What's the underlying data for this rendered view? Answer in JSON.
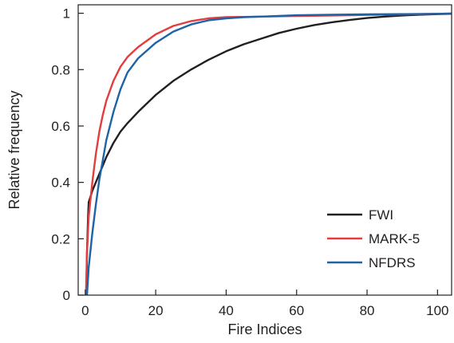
{
  "chart_data": {
    "type": "line",
    "title": "",
    "xlabel": "Fire Indices",
    "ylabel": "Relative frequency",
    "xlim": [
      -2,
      104
    ],
    "ylim": [
      0,
      1.03
    ],
    "xticks": [
      0,
      20,
      40,
      60,
      80,
      100
    ],
    "xtick_labels": [
      "0",
      "20",
      "40",
      "60",
      "80",
      "100"
    ],
    "yticks": [
      0,
      0.2,
      0.4,
      0.6,
      0.8,
      1
    ],
    "ytick_labels": [
      "0",
      "0.2",
      "0.4",
      "0.6",
      "0.8",
      "1"
    ],
    "grid": false,
    "legend_position": "bottom-right",
    "series": [
      {
        "name": "FWI",
        "color": "#231f20",
        "x": [
          0.3,
          0.5,
          0.8,
          1,
          1.5,
          2,
          3,
          4,
          5,
          6,
          8,
          10,
          12,
          15,
          20,
          25,
          30,
          35,
          40,
          45,
          50,
          55,
          60,
          65,
          70,
          75,
          80,
          85,
          90,
          95,
          100,
          104
        ],
        "y": [
          0.0,
          0.15,
          0.28,
          0.33,
          0.35,
          0.37,
          0.4,
          0.43,
          0.46,
          0.49,
          0.54,
          0.58,
          0.61,
          0.65,
          0.71,
          0.76,
          0.8,
          0.835,
          0.865,
          0.89,
          0.91,
          0.93,
          0.945,
          0.958,
          0.968,
          0.976,
          0.983,
          0.988,
          0.992,
          0.995,
          0.997,
          0.998
        ]
      },
      {
        "name": "MARK-5",
        "color": "#e23d3f",
        "x": [
          0.2,
          0.5,
          1,
          2,
          3,
          4,
          5,
          6,
          8,
          10,
          12,
          15,
          20,
          25,
          30,
          35,
          40,
          45,
          50,
          60,
          70,
          80,
          90,
          100,
          104
        ],
        "y": [
          0.0,
          0.15,
          0.28,
          0.4,
          0.5,
          0.58,
          0.64,
          0.69,
          0.76,
          0.81,
          0.845,
          0.88,
          0.925,
          0.955,
          0.972,
          0.982,
          0.986,
          0.987,
          0.988,
          0.99,
          0.992,
          0.994,
          0.996,
          0.998,
          0.999
        ]
      },
      {
        "name": "NFDRS",
        "color": "#1e63a6",
        "x": [
          0.5,
          1,
          2,
          3,
          4,
          5,
          6,
          8,
          10,
          12,
          15,
          20,
          25,
          30,
          35,
          40,
          45,
          50,
          60,
          70,
          80,
          90,
          100,
          104
        ],
        "y": [
          0.0,
          0.1,
          0.22,
          0.32,
          0.41,
          0.48,
          0.55,
          0.65,
          0.73,
          0.79,
          0.84,
          0.895,
          0.935,
          0.96,
          0.975,
          0.982,
          0.986,
          0.988,
          0.993,
          0.995,
          0.996,
          0.997,
          0.998,
          0.999
        ]
      }
    ]
  }
}
